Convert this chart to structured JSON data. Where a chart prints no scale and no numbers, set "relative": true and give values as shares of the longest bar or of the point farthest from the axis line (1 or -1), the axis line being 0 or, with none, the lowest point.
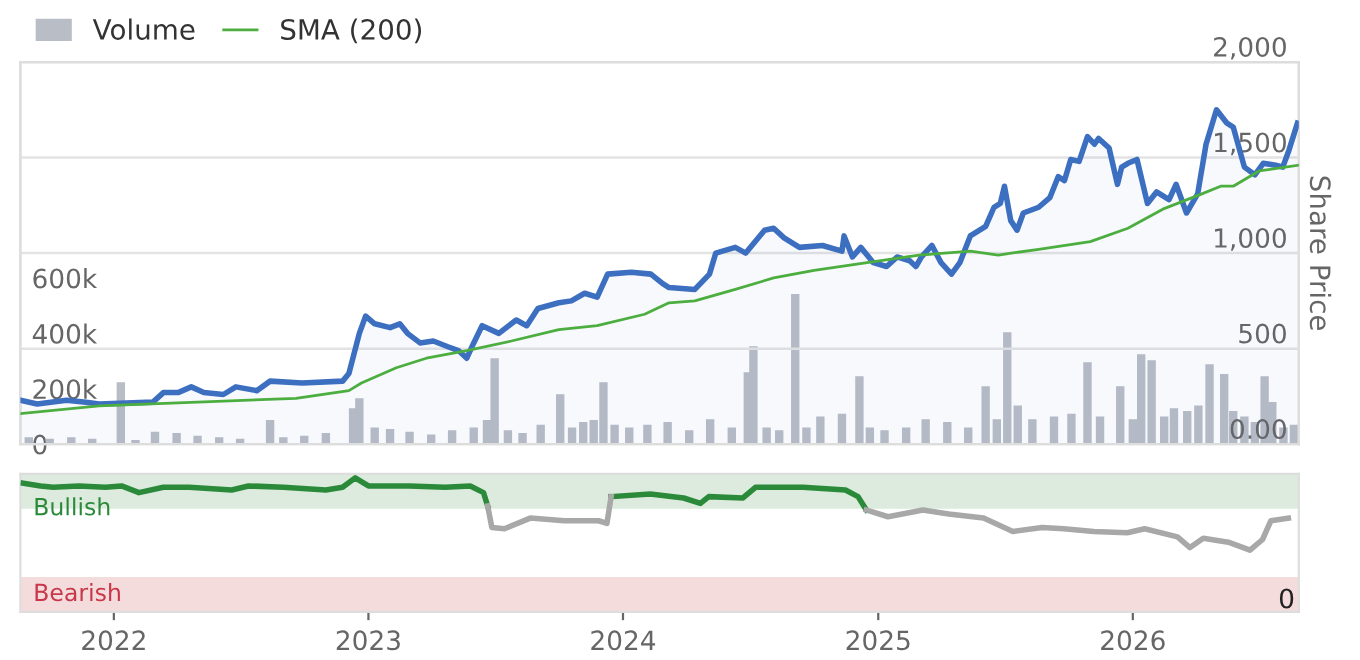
{
  "chart_data": [
    {
      "type": "line",
      "y2label": "Share Price",
      "legend": "top left",
      "grid": "y",
      "tick_labels": "y",
      "xlim": [
        "2021-08-20",
        "2026-08-27"
      ],
      "ylim": [
        0,
        1380000
      ],
      "yticks": [
        {
          "value": 0,
          "label": "0"
        },
        {
          "value": 200000,
          "label": "200k"
        },
        {
          "value": 400000,
          "label": "400k"
        },
        {
          "value": 600000,
          "label": "600k"
        }
      ],
      "y2lim": [
        0,
        2000
      ],
      "y2ticks": [
        {
          "value": 0,
          "label": "0.00"
        },
        500,
        {
          "value": 1000,
          "label": "1,000"
        },
        {
          "value": 1500,
          "label": "1,500"
        },
        {
          "value": 2000,
          "label": "2,000"
        }
      ],
      "series": [
        {
          "name": "Volume",
          "type": "bar",
          "axis": "y",
          "color": "#b9bdc5",
          "x": [
            "2021-09-01",
            "2021-10-01",
            "2021-11-01",
            "2021-12-01",
            "2022-01-11",
            "2022-02-01",
            "2022-03-01",
            "2022-04-01",
            "2022-05-01",
            "2022-06-01",
            "2022-07-01",
            "2022-08-13",
            "2022-09-01",
            "2022-10-01",
            "2022-11-01",
            "2022-12-10",
            "2022-12-19",
            "2023-01-10",
            "2023-02-01",
            "2023-03-01",
            "2023-04-01",
            "2023-05-01",
            "2023-06-01",
            "2023-06-20",
            "2023-07-01",
            "2023-07-20",
            "2023-08-10",
            "2023-09-05",
            "2023-10-03",
            "2023-10-20",
            "2023-11-05",
            "2023-11-20",
            "2023-12-04",
            "2023-12-20",
            "2024-01-10",
            "2024-02-05",
            "2024-03-05",
            "2024-04-05",
            "2024-05-05",
            "2024-06-05",
            "2024-06-28",
            "2024-07-06",
            "2024-07-25",
            "2024-08-12",
            "2024-09-04",
            "2024-09-20",
            "2024-10-10",
            "2024-11-10",
            "2024-12-05",
            "2024-12-20",
            "2025-01-10",
            "2025-02-10",
            "2025-03-10",
            "2025-04-10",
            "2025-05-10",
            "2025-06-04",
            "2025-06-20",
            "2025-07-05",
            "2025-07-20",
            "2025-08-10",
            "2025-09-10",
            "2025-10-05",
            "2025-10-28",
            "2025-11-15",
            "2025-12-14",
            "2026-01-01",
            "2026-01-13",
            "2026-01-28",
            "2026-02-15",
            "2026-03-01",
            "2026-03-20",
            "2026-04-05",
            "2026-04-21",
            "2026-05-12",
            "2026-05-25",
            "2026-06-10",
            "2026-06-25",
            "2026-07-09",
            "2026-07-20",
            "2026-08-05",
            "2026-08-20"
          ],
          "values": [
            25000,
            20000,
            25000,
            20000,
            224000,
            15000,
            45000,
            40000,
            30000,
            25000,
            20000,
            87000,
            25000,
            30000,
            40000,
            130000,
            166000,
            60000,
            55000,
            45000,
            35000,
            50000,
            60000,
            87000,
            310000,
            50000,
            40000,
            70000,
            180000,
            60000,
            80000,
            87000,
            224000,
            70000,
            60000,
            70000,
            80000,
            50000,
            90000,
            60000,
            260000,
            354000,
            60000,
            50000,
            542000,
            60000,
            100000,
            110000,
            245000,
            60000,
            50000,
            60000,
            90000,
            80000,
            60000,
            209000,
            90000,
            404000,
            140000,
            90000,
            100000,
            110000,
            296000,
            100000,
            209000,
            90000,
            325000,
            303000,
            100000,
            130000,
            120000,
            140000,
            289000,
            253000,
            120000,
            100000,
            80000,
            245000,
            152000,
            60000,
            70000
          ]
        },
        {
          "type": "area",
          "axis": "y2",
          "color": "#3d6fc0",
          "x": [
            "2021-08-20",
            "2021-09-13",
            "2021-10-25",
            "2021-11-22",
            "2021-12-11",
            "2022-02-26",
            "2022-03-13",
            "2022-04-03",
            "2022-04-22",
            "2022-05-10",
            "2022-06-07",
            "2022-06-25",
            "2022-07-25",
            "2022-08-13",
            "2022-09-28",
            "2022-11-25",
            "2022-12-04",
            "2022-12-19",
            "2022-12-28",
            "2023-01-10",
            "2023-02-01",
            "2023-02-15",
            "2023-02-26",
            "2023-03-16",
            "2023-04-04",
            "2023-04-25",
            "2023-05-10",
            "2023-05-22",
            "2023-06-01",
            "2023-06-13",
            "2023-07-07",
            "2023-08-01",
            "2023-08-16",
            "2023-09-01",
            "2023-10-01",
            "2023-10-19",
            "2023-11-07",
            "2023-11-25",
            "2023-12-10",
            "2024-01-13",
            "2024-02-10",
            "2024-02-27",
            "2024-03-07",
            "2024-04-13",
            "2024-05-04",
            "2024-05-13",
            "2024-06-10",
            "2024-06-25",
            "2024-07-22",
            "2024-08-04",
            "2024-08-19",
            "2024-09-10",
            "2024-10-13",
            "2024-11-10",
            "2024-11-13",
            "2024-11-25",
            "2024-12-07",
            "2024-12-25",
            "2025-01-13",
            "2025-01-28",
            "2025-02-15",
            "2025-02-24",
            "2025-03-04",
            "2025-03-19",
            "2025-04-01",
            "2025-04-16",
            "2025-04-28",
            "2025-05-13",
            "2025-06-04",
            "2025-06-16",
            "2025-06-25",
            "2025-07-01",
            "2025-07-10",
            "2025-07-19",
            "2025-07-28",
            "2025-08-19",
            "2025-09-04",
            "2025-09-16",
            "2025-09-25",
            "2025-10-04",
            "2025-10-16",
            "2025-10-28",
            "2025-11-07",
            "2025-11-13",
            "2025-11-28",
            "2025-12-10",
            "2025-12-16",
            "2025-12-25",
            "2026-01-07",
            "2026-01-22",
            "2026-02-04",
            "2026-02-22",
            "2026-03-04",
            "2026-03-19",
            "2026-04-04",
            "2026-04-16",
            "2026-05-01",
            "2026-05-16",
            "2026-05-25",
            "2026-06-10",
            "2026-06-25",
            "2026-07-07",
            "2026-07-25",
            "2026-08-04",
            "2026-08-13",
            "2026-08-25"
          ],
          "values": [
            230,
            210,
            230,
            220,
            210,
            220,
            270,
            270,
            300,
            270,
            260,
            300,
            280,
            330,
            320,
            330,
            370,
            580,
            670,
            630,
            610,
            630,
            580,
            530,
            540,
            510,
            490,
            450,
            530,
            620,
            580,
            650,
            620,
            710,
            740,
            750,
            790,
            770,
            890,
            900,
            890,
            840,
            820,
            810,
            890,
            1000,
            1030,
            1000,
            1120,
            1130,
            1080,
            1030,
            1040,
            1010,
            1090,
            980,
            1030,
            950,
            930,
            980,
            960,
            930,
            980,
            1040,
            950,
            890,
            950,
            1090,
            1140,
            1240,
            1260,
            1350,
            1170,
            1120,
            1210,
            1240,
            1290,
            1400,
            1380,
            1490,
            1480,
            1610,
            1570,
            1600,
            1550,
            1360,
            1450,
            1470,
            1490,
            1260,
            1320,
            1280,
            1360,
            1210,
            1310,
            1570,
            1750,
            1680,
            1660,
            1450,
            1410,
            1470,
            1460,
            1450,
            1540,
            1680
          ]
        },
        {
          "name": "SMA (200)",
          "axis": "y2",
          "color": "#4cae3f",
          "x": [
            "2021-08-20",
            "2021-12-11",
            "2022-05-01",
            "2022-09-19",
            "2022-12-04",
            "2022-12-22",
            "2023-02-10",
            "2023-03-25",
            "2023-05-22",
            "2023-07-25",
            "2023-10-01",
            "2023-11-25",
            "2024-02-01",
            "2024-03-07",
            "2024-04-13",
            "2024-06-10",
            "2024-08-04",
            "2024-10-01",
            "2024-12-16",
            "2025-03-01",
            "2025-05-13",
            "2025-06-22",
            "2025-08-19",
            "2025-11-01",
            "2025-12-25",
            "2026-02-13",
            "2026-04-10",
            "2026-05-07",
            "2026-05-25",
            "2026-07-01",
            "2026-08-27"
          ],
          "values": [
            160,
            200,
            220,
            240,
            280,
            320,
            400,
            450,
            490,
            540,
            600,
            620,
            680,
            740,
            750,
            810,
            870,
            910,
            950,
            990,
            1010,
            990,
            1020,
            1060,
            1130,
            1230,
            1310,
            1350,
            1350,
            1430,
            1460
          ]
        }
      ]
    },
    {
      "type": "line",
      "relative": true,
      "annotations": [
        "0"
      ],
      "xlim": [
        "2021-08-20",
        "2026-08-27"
      ],
      "xticks": [
        {
          "value": "2022-01-01",
          "label": "2022"
        },
        {
          "value": "2023-01-01",
          "label": "2023"
        },
        {
          "value": "2024-01-01",
          "label": "2024"
        },
        {
          "value": "2025-01-01",
          "label": "2025"
        },
        {
          "value": "2026-01-01",
          "label": "2026"
        }
      ],
      "bands": [
        {
          "axis": "y",
          "from": 0.77,
          "to": 1.03,
          "label": "Bullish",
          "color": "#dcebdd"
        },
        {
          "axis": "y",
          "from": 0,
          "to": 0.26,
          "label": "Bearish",
          "color": "#f5dcdc"
        }
      ],
      "series": [
        {
          "color": "#2b8a3a",
          "x": [
            "2021-08-24",
            "2021-09-18",
            "2021-10-06",
            "2021-11-12",
            "2021-12-20",
            "2022-01-12",
            "2022-02-06",
            "2022-03-13",
            "2022-04-19",
            "2022-06-19",
            "2022-07-13",
            "2022-09-01",
            "2022-11-01",
            "2022-11-25",
            "2022-12-13",
            "2023-01-01",
            "2023-03-01",
            "2023-04-21",
            "2023-05-27",
            "2023-06-15",
            "2023-06-21",
            "2023-06-27",
            "2023-12-15",
            "2024-02-09",
            "2024-03-28",
            "2024-04-21",
            "2024-05-03",
            "2024-06-21",
            "2024-07-09",
            "2024-09-15",
            "2024-11-15",
            "2024-12-03",
            "2024-12-15"
          ],
          "values": [
            0.96,
            0.94,
            0.93,
            0.94,
            0.93,
            0.94,
            0.89,
            0.93,
            0.93,
            0.91,
            0.94,
            0.93,
            0.91,
            0.93,
            1,
            0.94,
            0.94,
            0.93,
            0.94,
            0.89,
            0.79,
            null,
            0.86,
            0.88,
            0.85,
            0.81,
            0.86,
            0.85,
            0.93,
            0.93,
            0.91,
            0.86,
            0.76
          ]
        },
        {
          "color": "#a8a8a8",
          "x": [
            "2023-06-21",
            "2023-06-27",
            "2023-07-15",
            "2023-08-21",
            "2023-10-09",
            "2023-11-27",
            "2023-12-09",
            "2023-12-15",
            "2024-06-01",
            "2024-12-15",
            "2025-01-15",
            "2025-03-06",
            "2025-04-12",
            "2025-06-01",
            "2025-07-13",
            "2025-08-24",
            "2025-09-24",
            "2025-11-06",
            "2025-12-24",
            "2026-01-18",
            "2026-03-06",
            "2026-03-24",
            "2026-04-12",
            "2026-05-18",
            "2026-06-18",
            "2026-07-06",
            "2026-07-18",
            "2026-08-12"
          ],
          "values": [
            0.79,
            0.63,
            0.62,
            0.7,
            0.68,
            0.68,
            0.66,
            0.86,
            null,
            0.76,
            0.71,
            0.76,
            0.73,
            0.7,
            0.6,
            0.63,
            0.62,
            0.6,
            0.59,
            0.62,
            0.56,
            0.48,
            0.55,
            0.52,
            0.46,
            0.54,
            0.68,
            0.7
          ]
        }
      ]
    }
  ]
}
